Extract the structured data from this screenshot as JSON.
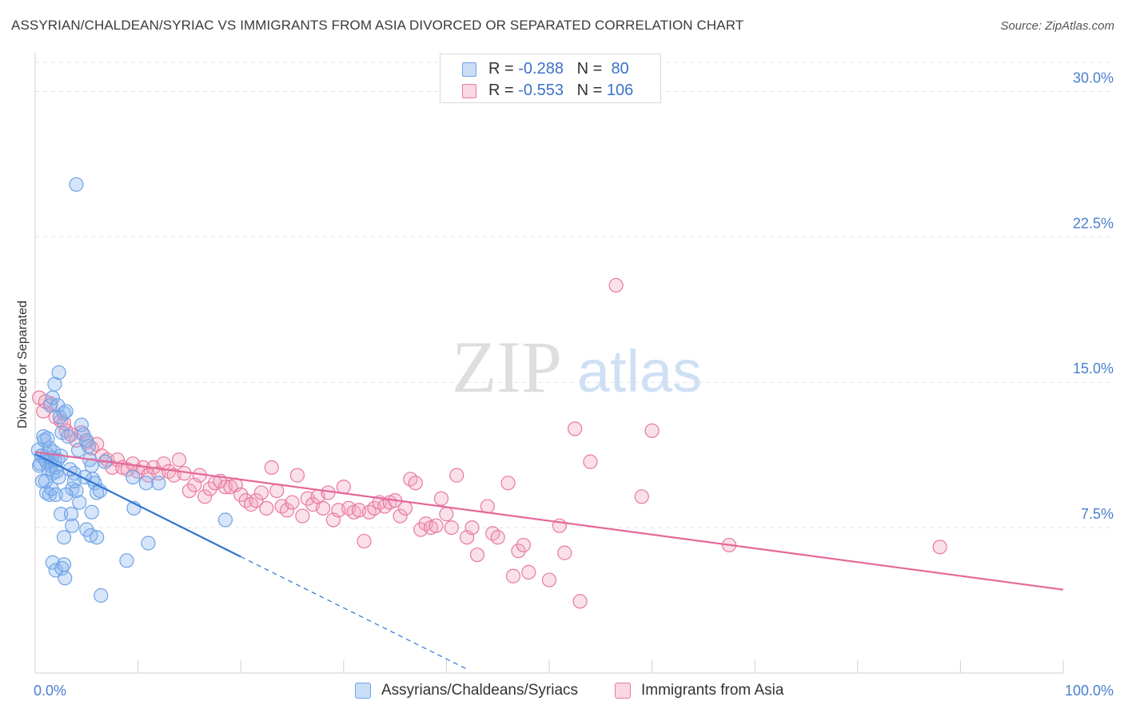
{
  "title": "ASSYRIAN/CHALDEAN/SYRIAC VS IMMIGRANTS FROM ASIA DIVORCED OR SEPARATED CORRELATION CHART",
  "source": "Source: ZipAtlas.com",
  "watermark": {
    "zip": "ZIP",
    "atlas": "atlas"
  },
  "colors": {
    "blue": "#6fa3e6",
    "blue_fill": "rgba(138,180,238,0.35)",
    "blue_line": "#2e74d6",
    "pink": "#e9799f",
    "pink_fill": "rgba(242,166,192,0.35)",
    "pink_line": "#e4689a",
    "tick_text": "#4a7fd0",
    "grid": "#e3e3e3"
  },
  "legend": {
    "rows": [
      {
        "r_label": "R = ",
        "r_value": "-0.288",
        "n_label": "N = ",
        "n_value": "80",
        "color": "blue"
      },
      {
        "r_label": "R = ",
        "r_value": "-0.553",
        "n_label": "N = ",
        "n_value": "106",
        "color": "pink"
      }
    ]
  },
  "bottom_legend": [
    "Assyrians/Chaldeans/Syriacs",
    "Immigrants from Asia"
  ],
  "chart_data": {
    "type": "scatter",
    "title": "ASSYRIAN/CHALDEAN/SYRIAC VS IMMIGRANTS FROM ASIA DIVORCED OR SEPARATED CORRELATION CHART",
    "xlabel": "",
    "ylabel": "Divorced or Separated",
    "xlim": [
      0,
      100
    ],
    "ylim": [
      0,
      31.5
    ],
    "x_tick_labels": [
      {
        "value": 0,
        "label": "0.0%"
      },
      {
        "value": 100,
        "label": "100.0%"
      }
    ],
    "y_tick_labels": [
      {
        "value": 7.5,
        "label": "7.5%"
      },
      {
        "value": 15.0,
        "label": "15.0%"
      },
      {
        "value": 22.5,
        "label": "22.5%"
      },
      {
        "value": 30.0,
        "label": "30.0%"
      }
    ],
    "x_minor_ticks": [
      0,
      10,
      20,
      30,
      40,
      50,
      60,
      70,
      80,
      90,
      100
    ],
    "grid": "horizontal dashed",
    "legend_position": "top-center",
    "series": [
      {
        "name": "Assyrians/Chaldeans/Syriacs",
        "color": "blue",
        "r": -0.288,
        "n": 80,
        "trend": {
          "x0": 0,
          "y0": 11.3,
          "x1": 20,
          "y1": 6.0,
          "dashed_to_x": 42,
          "dashed_to_y": 0.2
        },
        "points": [
          [
            0.3,
            11.5
          ],
          [
            0.5,
            10.8
          ],
          [
            0.6,
            11.2
          ],
          [
            0.8,
            12.2
          ],
          [
            0.9,
            12.0
          ],
          [
            1.0,
            11.0
          ],
          [
            1.1,
            10.9
          ],
          [
            1.2,
            11.3
          ],
          [
            1.3,
            10.5
          ],
          [
            1.4,
            11.6
          ],
          [
            1.5,
            10.7
          ],
          [
            1.6,
            11.1
          ],
          [
            1.7,
            10.3
          ],
          [
            1.8,
            11.4
          ],
          [
            1.9,
            11.0
          ],
          [
            2.0,
            10.6
          ],
          [
            2.1,
            10.4
          ],
          [
            2.2,
            11.0
          ],
          [
            1.0,
            9.9
          ],
          [
            1.1,
            9.3
          ],
          [
            1.4,
            9.2
          ],
          [
            1.6,
            9.5
          ],
          [
            2.0,
            9.2
          ],
          [
            2.3,
            10.1
          ],
          [
            1.5,
            13.8
          ],
          [
            1.7,
            14.2
          ],
          [
            1.9,
            14.9
          ],
          [
            2.3,
            15.5
          ],
          [
            2.2,
            13.8
          ],
          [
            2.4,
            13.2
          ],
          [
            2.6,
            12.4
          ],
          [
            2.8,
            13.4
          ],
          [
            3.0,
            13.5
          ],
          [
            3.2,
            12.2
          ],
          [
            3.4,
            10.5
          ],
          [
            3.6,
            9.5
          ],
          [
            3.8,
            10.3
          ],
          [
            4.0,
            9.4
          ],
          [
            4.2,
            11.5
          ],
          [
            4.5,
            12.8
          ],
          [
            4.7,
            12.3
          ],
          [
            5.0,
            12.0
          ],
          [
            5.2,
            11.7
          ],
          [
            5.3,
            11.0
          ],
          [
            5.5,
            10.7
          ],
          [
            5.6,
            10.0
          ],
          [
            5.8,
            9.8
          ],
          [
            6.0,
            9.3
          ],
          [
            6.3,
            9.4
          ],
          [
            6.8,
            10.9
          ],
          [
            2.5,
            8.2
          ],
          [
            3.5,
            8.2
          ],
          [
            4.3,
            8.8
          ],
          [
            5.5,
            8.3
          ],
          [
            2.8,
            7.0
          ],
          [
            3.6,
            7.6
          ],
          [
            5.0,
            7.4
          ],
          [
            5.4,
            7.1
          ],
          [
            6.0,
            7.0
          ],
          [
            1.7,
            5.7
          ],
          [
            2.0,
            5.3
          ],
          [
            2.6,
            5.4
          ],
          [
            2.8,
            5.6
          ],
          [
            2.9,
            4.9
          ],
          [
            6.4,
            4.0
          ],
          [
            8.9,
            5.8
          ],
          [
            11.0,
            6.7
          ],
          [
            9.5,
            10.1
          ],
          [
            10.8,
            9.8
          ],
          [
            12.0,
            9.8
          ],
          [
            9.6,
            8.5
          ],
          [
            18.5,
            7.9
          ],
          [
            4.0,
            25.2
          ],
          [
            0.4,
            10.7
          ],
          [
            0.7,
            9.9
          ],
          [
            1.2,
            12.1
          ],
          [
            2.5,
            11.2
          ],
          [
            3.0,
            9.2
          ],
          [
            4.8,
            10.1
          ],
          [
            3.8,
            9.9
          ]
        ]
      },
      {
        "name": "Immigrants from Asia",
        "color": "pink",
        "r": -0.553,
        "n": 106,
        "trend": {
          "x0": 0,
          "y0": 11.4,
          "x1": 100,
          "y1": 4.3
        },
        "points": [
          [
            0.4,
            14.2
          ],
          [
            0.8,
            13.5
          ],
          [
            1.5,
            13.9
          ],
          [
            2.0,
            13.2
          ],
          [
            2.5,
            13.0
          ],
          [
            3.0,
            12.5
          ],
          [
            3.5,
            12.3
          ],
          [
            4.0,
            12.0
          ],
          [
            4.5,
            12.4
          ],
          [
            5.0,
            11.9
          ],
          [
            5.5,
            11.6
          ],
          [
            6.0,
            11.8
          ],
          [
            6.5,
            11.2
          ],
          [
            7.0,
            11.0
          ],
          [
            7.5,
            10.6
          ],
          [
            8.0,
            11.0
          ],
          [
            8.5,
            10.6
          ],
          [
            9.0,
            10.5
          ],
          [
            9.5,
            10.8
          ],
          [
            10.0,
            10.4
          ],
          [
            10.5,
            10.6
          ],
          [
            11.0,
            10.2
          ],
          [
            11.5,
            10.6
          ],
          [
            12.0,
            10.3
          ],
          [
            12.5,
            10.8
          ],
          [
            13.0,
            10.4
          ],
          [
            13.5,
            10.2
          ],
          [
            14.0,
            11.0
          ],
          [
            14.5,
            10.3
          ],
          [
            15.0,
            9.4
          ],
          [
            15.5,
            9.7
          ],
          [
            16.0,
            10.2
          ],
          [
            16.5,
            9.1
          ],
          [
            17.0,
            9.5
          ],
          [
            17.5,
            9.8
          ],
          [
            18.0,
            9.9
          ],
          [
            18.5,
            9.6
          ],
          [
            19.0,
            9.6
          ],
          [
            19.5,
            9.7
          ],
          [
            20.0,
            9.2
          ],
          [
            20.5,
            8.9
          ],
          [
            21.0,
            8.7
          ],
          [
            21.5,
            8.9
          ],
          [
            22.0,
            9.3
          ],
          [
            22.5,
            8.5
          ],
          [
            23.0,
            10.6
          ],
          [
            23.5,
            9.4
          ],
          [
            24.0,
            8.6
          ],
          [
            24.5,
            8.4
          ],
          [
            25.0,
            8.8
          ],
          [
            25.5,
            10.2
          ],
          [
            26.0,
            8.1
          ],
          [
            26.5,
            9.0
          ],
          [
            27.0,
            8.7
          ],
          [
            27.5,
            9.1
          ],
          [
            28.0,
            8.5
          ],
          [
            28.5,
            9.3
          ],
          [
            29.0,
            7.9
          ],
          [
            29.5,
            8.4
          ],
          [
            30.0,
            9.6
          ],
          [
            30.5,
            8.5
          ],
          [
            31.0,
            8.3
          ],
          [
            31.5,
            8.4
          ],
          [
            32.0,
            6.8
          ],
          [
            32.5,
            8.3
          ],
          [
            33.0,
            8.5
          ],
          [
            33.5,
            8.8
          ],
          [
            34.0,
            8.6
          ],
          [
            34.5,
            8.8
          ],
          [
            35.0,
            8.9
          ],
          [
            35.5,
            8.1
          ],
          [
            36.0,
            8.5
          ],
          [
            36.5,
            10.0
          ],
          [
            37.0,
            9.8
          ],
          [
            37.5,
            7.4
          ],
          [
            38.0,
            7.7
          ],
          [
            38.5,
            7.5
          ],
          [
            39.0,
            7.6
          ],
          [
            39.5,
            9.0
          ],
          [
            40.0,
            8.2
          ],
          [
            40.5,
            7.5
          ],
          [
            41.0,
            10.2
          ],
          [
            42.0,
            7.0
          ],
          [
            42.5,
            7.5
          ],
          [
            43.0,
            6.1
          ],
          [
            44.0,
            8.6
          ],
          [
            44.5,
            7.2
          ],
          [
            45.0,
            7.0
          ],
          [
            46.0,
            9.8
          ],
          [
            46.5,
            5.0
          ],
          [
            47.0,
            6.3
          ],
          [
            47.5,
            6.6
          ],
          [
            48.0,
            5.2
          ],
          [
            50.0,
            4.8
          ],
          [
            51.0,
            7.6
          ],
          [
            51.5,
            6.2
          ],
          [
            53.0,
            3.7
          ],
          [
            54.0,
            10.9
          ],
          [
            52.5,
            12.6
          ],
          [
            59.0,
            9.1
          ],
          [
            60.0,
            12.5
          ],
          [
            56.5,
            20.0
          ],
          [
            67.5,
            6.6
          ],
          [
            88.0,
            6.5
          ],
          [
            1.0,
            14.0
          ],
          [
            2.8,
            12.9
          ]
        ]
      }
    ]
  }
}
